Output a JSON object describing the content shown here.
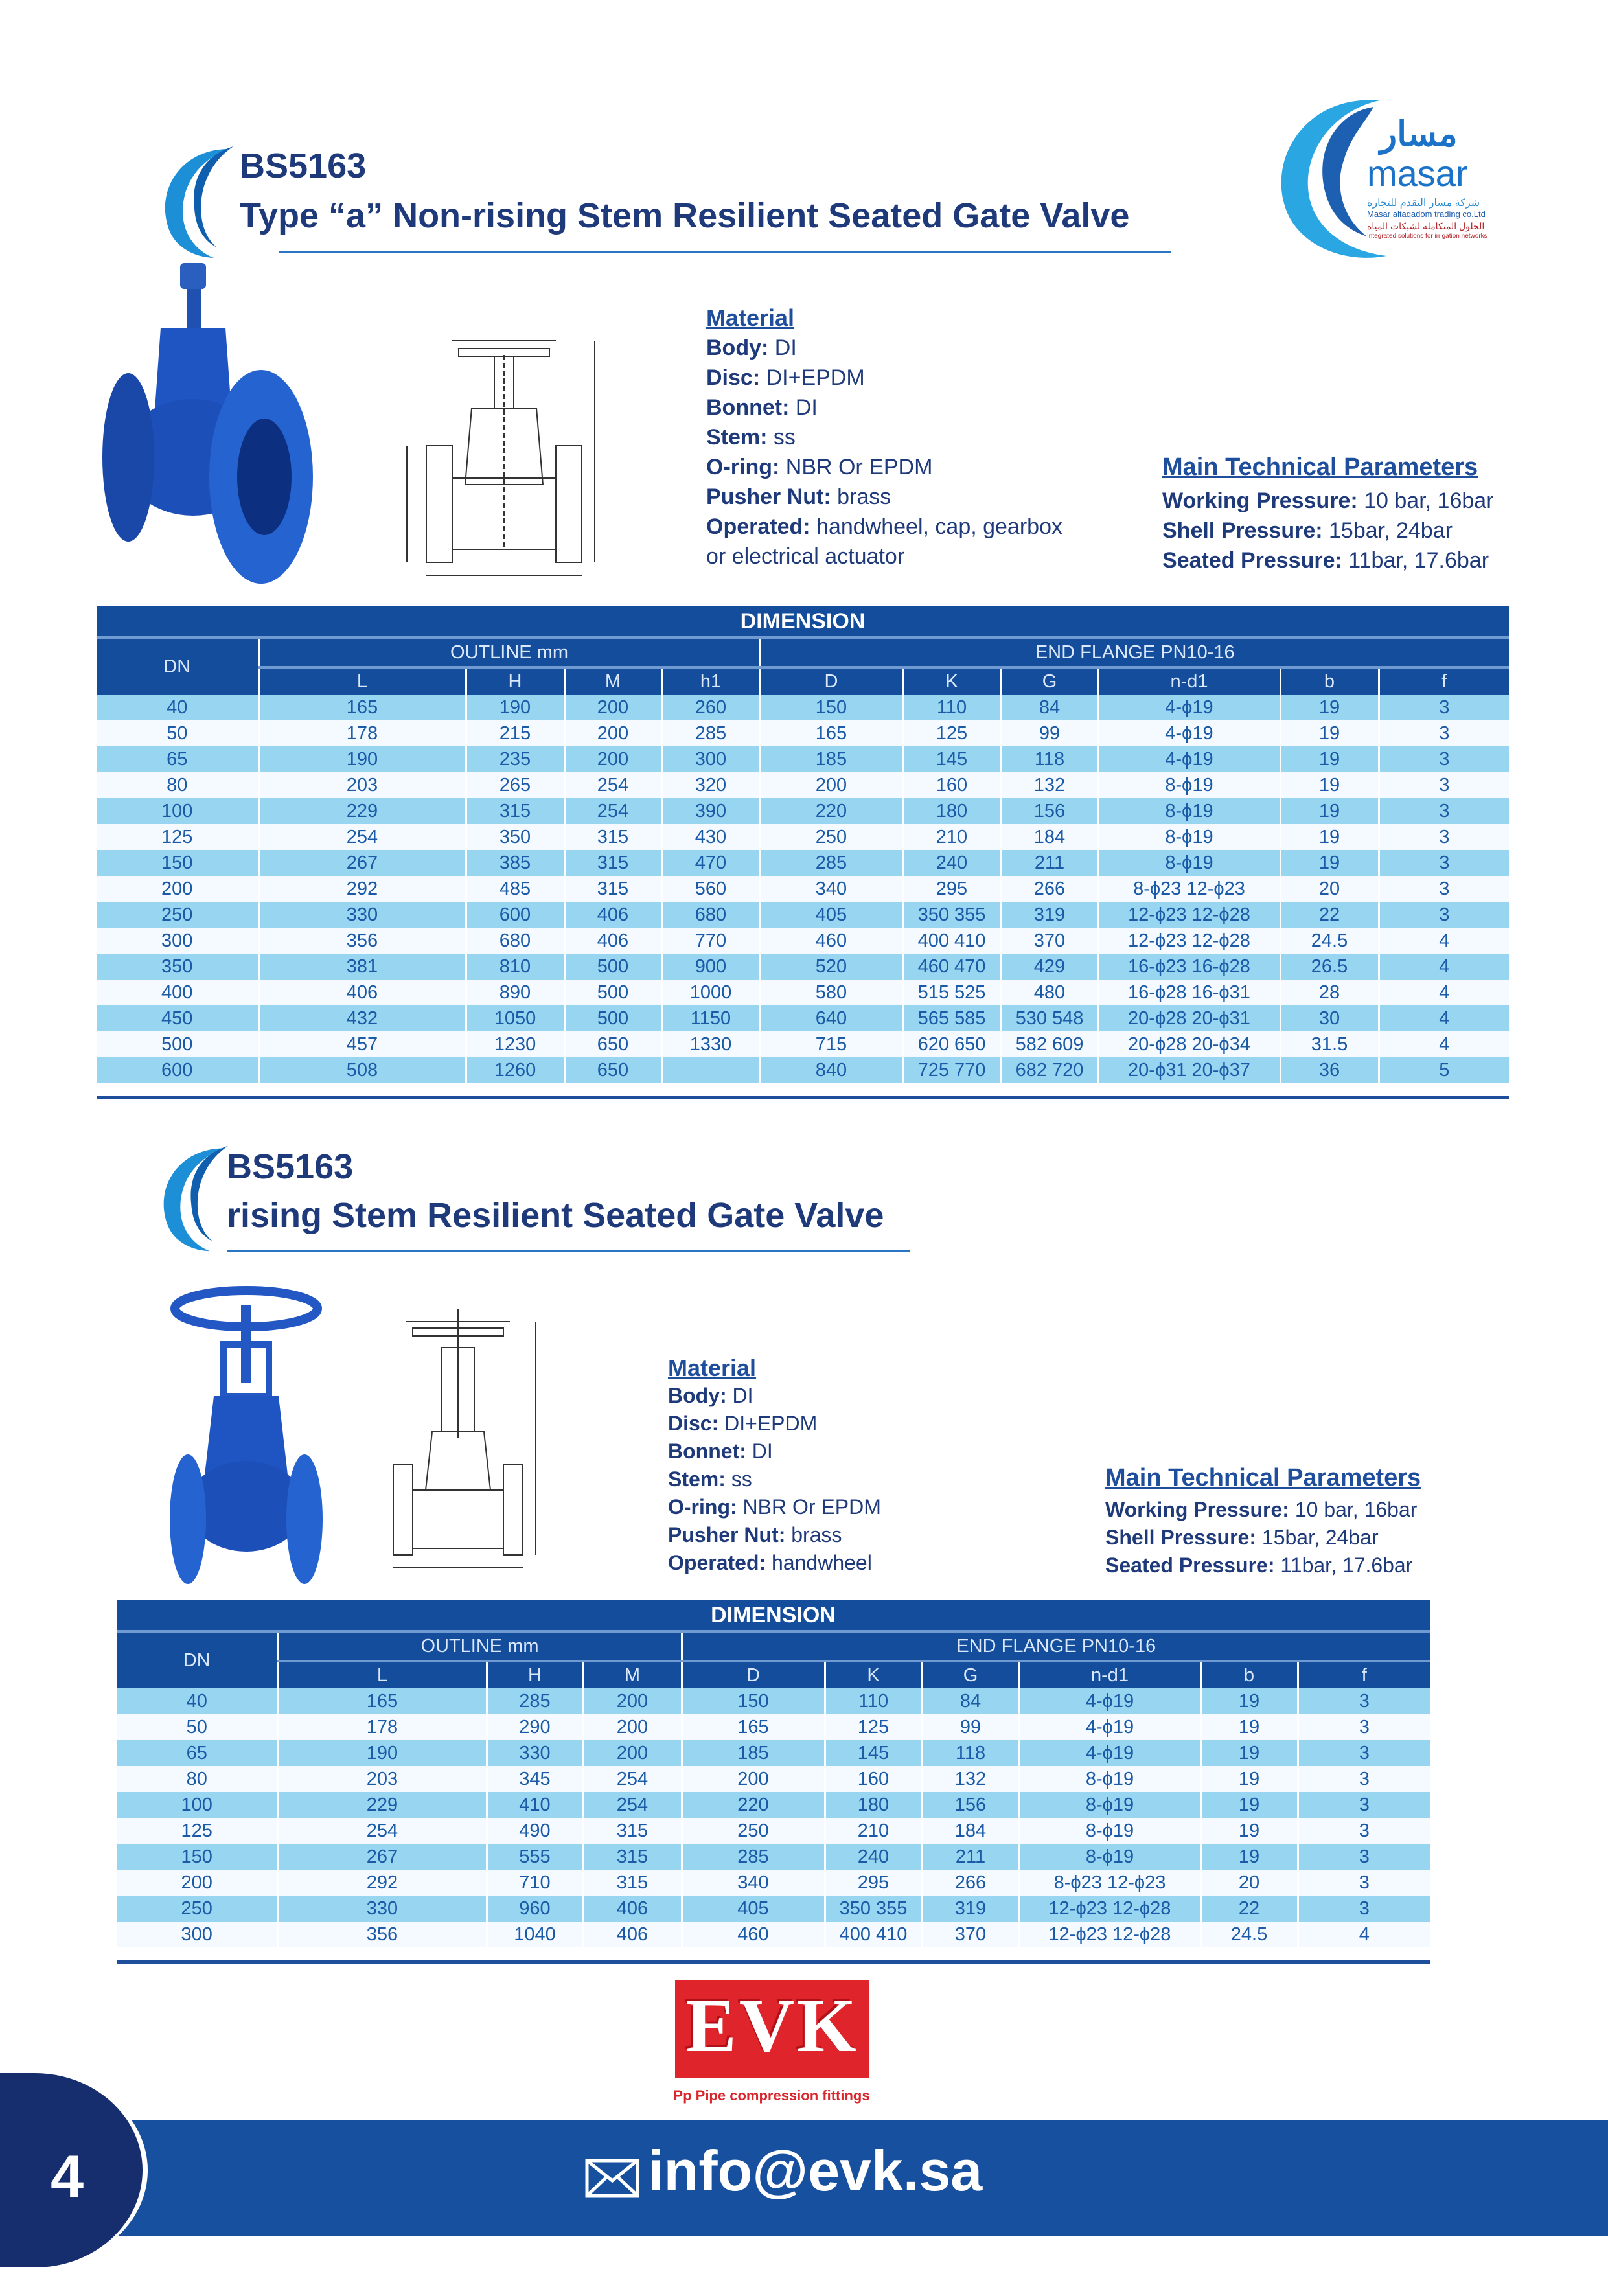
{
  "colors": {
    "header_blue": "#134d9c",
    "row_light_blue": "#97d5f1",
    "title_navy": "#1f3a7a",
    "footer_blue": "#17509e",
    "evk_red": "#e0242b"
  },
  "logos": {
    "masar": {
      "arabic": "مسار",
      "latin": "masar",
      "line1_ar": "شركة مسار التقدم للتجارة",
      "line2": "Masar altaqadom trading co.Ltd",
      "line3_ar": "الحلول المتكاملة لشبكات المياه",
      "line4": "Integrated solutions for irrigation networks"
    },
    "evk": {
      "text": "EVK",
      "tagline": "Pp Pipe compression fittings"
    }
  },
  "section1": {
    "code": "BS5163",
    "title": "Type “a” Non-rising Stem Resilient Seated Gate Valve",
    "material": {
      "heading": "Material",
      "items": [
        {
          "label": "Body:",
          "value": " DI"
        },
        {
          "label": "Disc:",
          "value": " DI+EPDM"
        },
        {
          "label": "Bonnet:",
          "value": " DI"
        },
        {
          "label": "Stem:",
          "value": " ss"
        },
        {
          "label": "O-ring:",
          "value": " NBR Or EPDM"
        },
        {
          "label": "Pusher Nut:",
          "value": " brass"
        },
        {
          "label": "Operated:",
          "value": " handwheel, cap, gearbox"
        }
      ],
      "continuation": "or electrical actuator"
    },
    "params": {
      "heading": "Main Technical Parameters",
      "items": [
        {
          "label": "Working Pressure:",
          "value": " 10 bar, 16bar"
        },
        {
          "label": "Shell Pressure:",
          "value": " 15bar, 24bar"
        },
        {
          "label": "Seated Pressure:",
          "value": " 11bar, 17.6bar"
        }
      ]
    },
    "table": {
      "caption": "DIMENSION",
      "dn": "DN",
      "group1": "OUTLINE mm",
      "group2": "END FLANGE PN10-16",
      "group1_cols": [
        "L",
        "H",
        "M",
        "h1"
      ],
      "group2_cols": [
        "D",
        "K",
        "G",
        "n-d1",
        "b",
        "f"
      ],
      "rows": [
        [
          "40",
          "165",
          "190",
          "200",
          "260",
          "150",
          "110",
          "84",
          "4-ϕ19",
          "19",
          "3"
        ],
        [
          "50",
          "178",
          "215",
          "200",
          "285",
          "165",
          "125",
          "99",
          "4-ϕ19",
          "19",
          "3"
        ],
        [
          "65",
          "190",
          "235",
          "200",
          "300",
          "185",
          "145",
          "118",
          "4-ϕ19",
          "19",
          "3"
        ],
        [
          "80",
          "203",
          "265",
          "254",
          "320",
          "200",
          "160",
          "132",
          "8-ϕ19",
          "19",
          "3"
        ],
        [
          "100",
          "229",
          "315",
          "254",
          "390",
          "220",
          "180",
          "156",
          "8-ϕ19",
          "19",
          "3"
        ],
        [
          "125",
          "254",
          "350",
          "315",
          "430",
          "250",
          "210",
          "184",
          "8-ϕ19",
          "19",
          "3"
        ],
        [
          "150",
          "267",
          "385",
          "315",
          "470",
          "285",
          "240",
          "211",
          "8-ϕ19",
          "19",
          "3"
        ],
        [
          "200",
          "292",
          "485",
          "315",
          "560",
          "340",
          "295",
          "266",
          "8-ϕ23 12-ϕ23",
          "20",
          "3"
        ],
        [
          "250",
          "330",
          "600",
          "406",
          "680",
          "405",
          "350 355",
          "319",
          "12-ϕ23 12-ϕ28",
          "22",
          "3"
        ],
        [
          "300",
          "356",
          "680",
          "406",
          "770",
          "460",
          "400 410",
          "370",
          "12-ϕ23 12-ϕ28",
          "24.5",
          "4"
        ],
        [
          "350",
          "381",
          "810",
          "500",
          "900",
          "520",
          "460 470",
          "429",
          "16-ϕ23 16-ϕ28",
          "26.5",
          "4"
        ],
        [
          "400",
          "406",
          "890",
          "500",
          "1000",
          "580",
          "515 525",
          "480",
          "16-ϕ28 16-ϕ31",
          "28",
          "4"
        ],
        [
          "450",
          "432",
          "1050",
          "500",
          "1150",
          "640",
          "565 585",
          "530 548",
          "20-ϕ28 20-ϕ31",
          "30",
          "4"
        ],
        [
          "500",
          "457",
          "1230",
          "650",
          "1330",
          "715",
          "620 650",
          "582 609",
          "20-ϕ28 20-ϕ34",
          "31.5",
          "4"
        ],
        [
          "600",
          "508",
          "1260",
          "650",
          "",
          "840",
          "725 770",
          "682 720",
          "20-ϕ31 20-ϕ37",
          "36",
          "5"
        ]
      ]
    }
  },
  "section2": {
    "code": "BS5163",
    "title": "rising Stem Resilient Seated Gate Valve",
    "material": {
      "heading": "Material",
      "items": [
        {
          "label": "Body:",
          "value": " DI"
        },
        {
          "label": "Disc:",
          "value": " DI+EPDM"
        },
        {
          "label": "Bonnet:",
          "value": " DI"
        },
        {
          "label": "Stem:",
          "value": " ss"
        },
        {
          "label": "O-ring:",
          "value": " NBR Or EPDM"
        },
        {
          "label": "Pusher Nut:",
          "value": " brass"
        },
        {
          "label": "Operated:",
          "value": " handwheel"
        }
      ]
    },
    "params": {
      "heading": "Main Technical Parameters",
      "items": [
        {
          "label": "Working Pressure:",
          "value": " 10 bar, 16bar"
        },
        {
          "label": "Shell Pressure:",
          "value": " 15bar, 24bar"
        },
        {
          "label": "Seated Pressure:",
          "value": " 11bar, 17.6bar"
        }
      ]
    },
    "table": {
      "caption": "DIMENSION",
      "dn": "DN",
      "group1": "OUTLINE mm",
      "group2": "END FLANGE PN10-16",
      "group1_cols": [
        "L",
        "H",
        "M"
      ],
      "group2_cols": [
        "D",
        "K",
        "G",
        "n-d1",
        "b",
        "f"
      ],
      "rows": [
        [
          "40",
          "165",
          "285",
          "200",
          "150",
          "110",
          "84",
          "4-ϕ19",
          "19",
          "3"
        ],
        [
          "50",
          "178",
          "290",
          "200",
          "165",
          "125",
          "99",
          "4-ϕ19",
          "19",
          "3"
        ],
        [
          "65",
          "190",
          "330",
          "200",
          "185",
          "145",
          "118",
          "4-ϕ19",
          "19",
          "3"
        ],
        [
          "80",
          "203",
          "345",
          "254",
          "200",
          "160",
          "132",
          "8-ϕ19",
          "19",
          "3"
        ],
        [
          "100",
          "229",
          "410",
          "254",
          "220",
          "180",
          "156",
          "8-ϕ19",
          "19",
          "3"
        ],
        [
          "125",
          "254",
          "490",
          "315",
          "250",
          "210",
          "184",
          "8-ϕ19",
          "19",
          "3"
        ],
        [
          "150",
          "267",
          "555",
          "315",
          "285",
          "240",
          "211",
          "8-ϕ19",
          "19",
          "3"
        ],
        [
          "200",
          "292",
          "710",
          "315",
          "340",
          "295",
          "266",
          "8-ϕ23 12-ϕ23",
          "20",
          "3"
        ],
        [
          "250",
          "330",
          "960",
          "406",
          "405",
          "350 355",
          "319",
          "12-ϕ23 12-ϕ28",
          "22",
          "3"
        ],
        [
          "300",
          "356",
          "1040",
          "406",
          "460",
          "400 410",
          "370",
          "12-ϕ23 12-ϕ28",
          "24.5",
          "4"
        ]
      ]
    }
  },
  "footer": {
    "page_number": "4",
    "email": "info@evk.sa",
    "icon": "envelope-icon"
  }
}
